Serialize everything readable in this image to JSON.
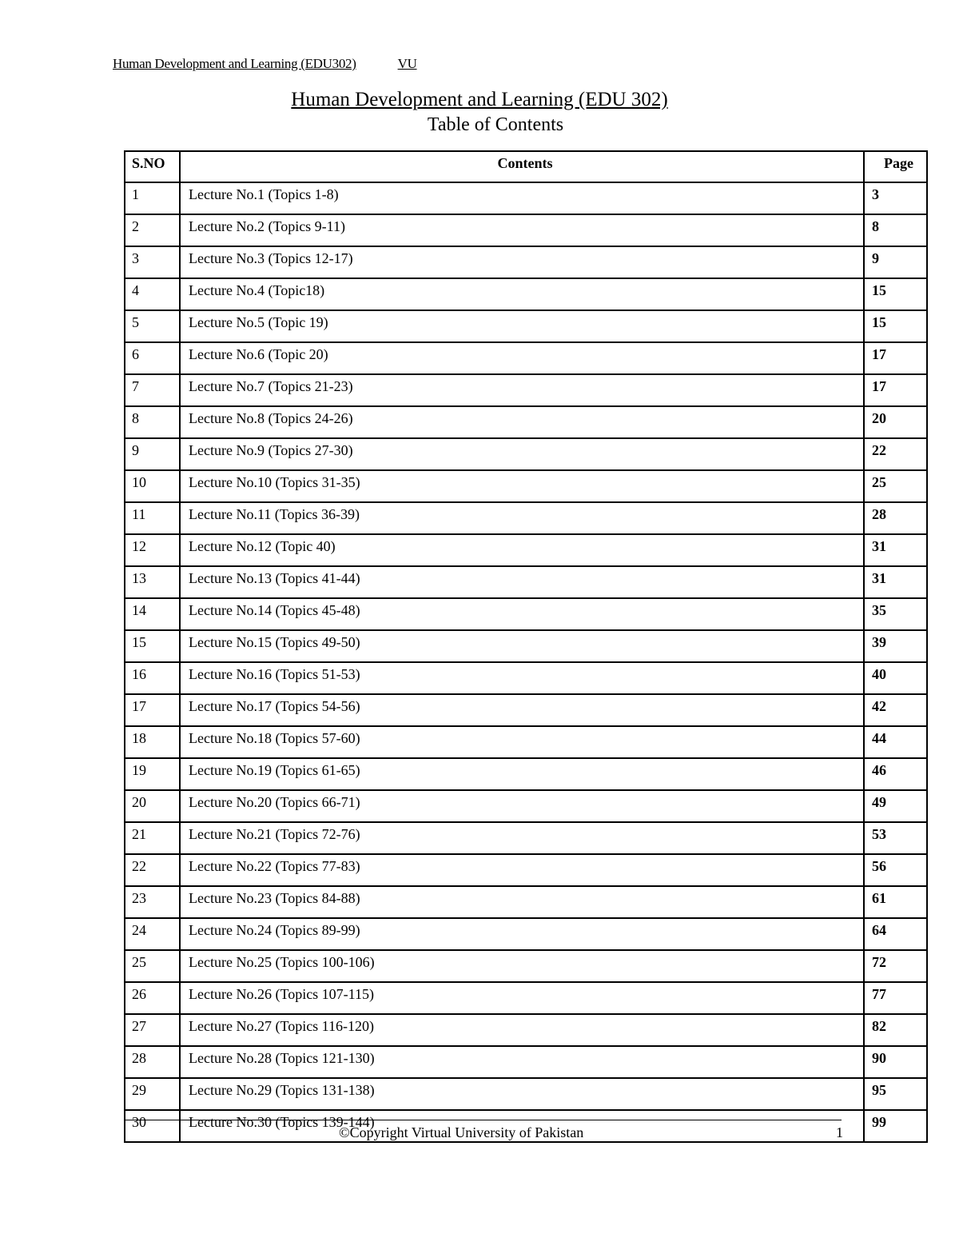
{
  "running_head": {
    "title": "Human Development and Learning (EDU302)",
    "org": "VU"
  },
  "document": {
    "title": "Human Development and Learning (EDU 302)",
    "subtitle": "Table of Contents"
  },
  "table": {
    "headers": [
      "S.NO",
      "Contents",
      "Page"
    ],
    "rows": [
      [
        "1",
        "Lecture No.1  (Topics 1-8)",
        "3"
      ],
      [
        "2",
        "Lecture No.2 (Topics 9-11)",
        "8"
      ],
      [
        "3",
        "Lecture No.3 (Topics 12-17)",
        "9"
      ],
      [
        "4",
        "Lecture No.4 (Topic18)",
        "15"
      ],
      [
        "5",
        "Lecture No.5 (Topic 19)",
        "15"
      ],
      [
        "6",
        "Lecture No.6 (Topic 20)",
        "17"
      ],
      [
        "7",
        "Lecture No.7 (Topics 21-23)",
        "17"
      ],
      [
        "8",
        "Lecture No.8 (Topics 24-26)",
        "20"
      ],
      [
        "9",
        "Lecture No.9 (Topics 27-30)",
        "22"
      ],
      [
        "10",
        "Lecture No.10 (Topics 31-35)",
        "25"
      ],
      [
        "11",
        "Lecture No.11 (Topics 36-39)",
        "28"
      ],
      [
        "12",
        "Lecture No.12 (Topic 40)",
        "31"
      ],
      [
        "13",
        "Lecture No.13 (Topics 41-44)",
        "31"
      ],
      [
        "14",
        "Lecture No.14 (Topics 45-48)",
        "35"
      ],
      [
        "15",
        "Lecture No.15 (Topics 49-50)",
        "39"
      ],
      [
        "16",
        "Lecture No.16 (Topics 51-53)",
        "40"
      ],
      [
        "17",
        "Lecture No.17 (Topics 54-56)",
        "42"
      ],
      [
        "18",
        "Lecture No.18 (Topics 57-60)",
        "44"
      ],
      [
        "19",
        "Lecture No.19 (Topics 61-65)",
        "46"
      ],
      [
        "20",
        "Lecture No.20 (Topics 66-71)",
        "49"
      ],
      [
        "21",
        "Lecture No.21 (Topics 72-76)",
        "53"
      ],
      [
        "22",
        "Lecture No.22 (Topics 77-83)",
        "56"
      ],
      [
        "23",
        "Lecture No.23 (Topics 84-88)",
        "61"
      ],
      [
        "24",
        "Lecture No.24 (Topics 89-99)",
        "64"
      ],
      [
        "25",
        "Lecture No.25 (Topics 100-106)",
        "72"
      ],
      [
        "26",
        "Lecture No.26 (Topics 107-115)",
        "77"
      ],
      [
        "27",
        "Lecture No.27 (Topics 116-120)",
        "82"
      ],
      [
        "28",
        "Lecture No.28 (Topics 121-130)",
        "90"
      ],
      [
        "29",
        "Lecture No.29 (Topics 131-138)",
        "95"
      ],
      [
        "30",
        "Lecture No.30 (Topics 139-144)",
        "99"
      ]
    ]
  },
  "footer": {
    "copyright": "©Copyright Virtual University of Pakistan",
    "page_number": "1"
  }
}
